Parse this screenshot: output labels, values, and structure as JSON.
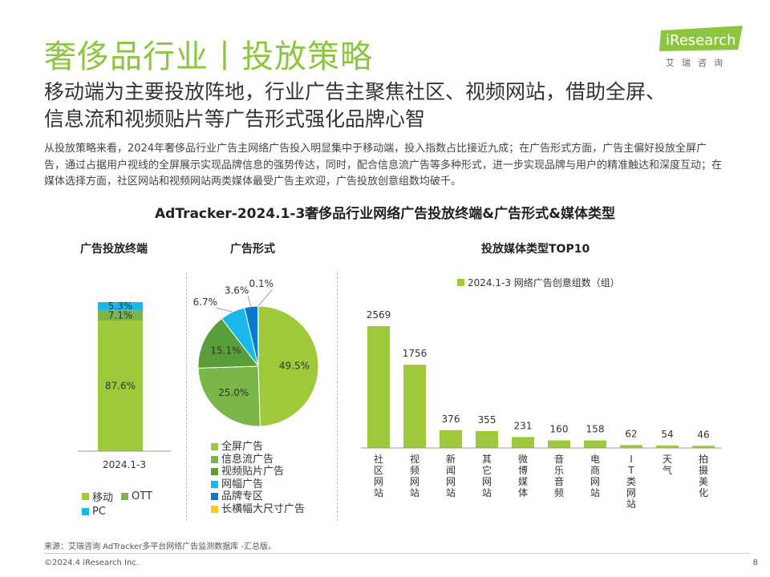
{
  "page": {
    "title": "奢侈品行业丨投放策略",
    "subtitle_line1": "移动端为主要投放阵地，行业广告主聚焦社区、视频网站，借助全屏、",
    "subtitle_line2": "信息流和视频贴片等广告形式强化品牌心智",
    "body": "从投放策略来看，2024年奢侈品行业广告主网络广告投入明显集中于移动端，投入指数占比接近九成；在广告形式方面，广告主偏好投放全屏广告，通过占据用户视线的全屏展示实现品牌信息的强势传达，同时，配合信息流广告等多种形式，进一步实现品牌与用户的精准触达和深度互动；在媒体选择方面，社区网站和视频网站两类媒体最受广告主欢迎，广告投放创意组数均破千。",
    "chart_main_title": "AdTracker-2024.1-3奢侈品行业网络广告投放终端&广告形式&媒体类型",
    "source": "来源：艾瑞咨询 AdTracker多平台网络广告监测数据库 -汇总版。",
    "copyright": "©2024.4 iResearch Inc.",
    "page_number": "8"
  },
  "logo": {
    "brand": "iResearch",
    "tagline": "艾瑞咨询",
    "color": "#8cc63f"
  },
  "colors": {
    "green_main": "#9ec93a",
    "green_mid": "#7ab648",
    "green_dark": "#5a9e3a",
    "cyan": "#1ab7ea",
    "blue": "#0a7ad1",
    "yellow": "#ffcc00",
    "title_green": "#8cc63f"
  },
  "chart_data": [
    {
      "type": "bar",
      "title": "广告投放终端",
      "stacked": true,
      "categories": [
        "2024.1-3"
      ],
      "series": [
        {
          "name": "移动",
          "values": [
            87.6
          ],
          "label": "87.6%",
          "color": "#9ec93a"
        },
        {
          "name": "OTT",
          "values": [
            7.1
          ],
          "label": "7.1%",
          "color": "#7ab648"
        },
        {
          "name": "PC",
          "values": [
            5.3
          ],
          "label": "5.3%",
          "color": "#1ab7ea"
        }
      ],
      "legend": [
        "移动",
        "OTT",
        "PC"
      ]
    },
    {
      "type": "pie",
      "title": "广告形式",
      "slices": [
        {
          "name": "全屏广告",
          "value": 49.5,
          "label": "49.5%",
          "color": "#9ec93a"
        },
        {
          "name": "信息流广告",
          "value": 25.0,
          "label": "25.0%",
          "color": "#7ab648"
        },
        {
          "name": "视频贴片广告",
          "value": 15.1,
          "label": "15.1%",
          "color": "#5a9e3a"
        },
        {
          "name": "网幅广告",
          "value": 6.7,
          "label": "6.7%",
          "color": "#1ab7ea"
        },
        {
          "name": "品牌专区",
          "value": 3.6,
          "label": "3.6%",
          "color": "#0a7ad1"
        },
        {
          "name": "长横幅大尺寸广告",
          "value": 0.1,
          "label": "0.1%",
          "color": "#ffcc00"
        }
      ]
    },
    {
      "type": "bar",
      "title": "投放媒体类型TOP10",
      "series_name": "2024.1-3 网络广告创意组数（组）",
      "categories": [
        "社区网站",
        "视频网站",
        "新闻网站",
        "其它网站",
        "微博媒体",
        "音乐音频",
        "电商网站",
        "IT类网站",
        "天气",
        "拍摄美化"
      ],
      "values": [
        2569,
        1756,
        376,
        355,
        231,
        160,
        158,
        62,
        54,
        46
      ],
      "color": "#9ec93a",
      "ylim": [
        0,
        2700
      ]
    }
  ]
}
